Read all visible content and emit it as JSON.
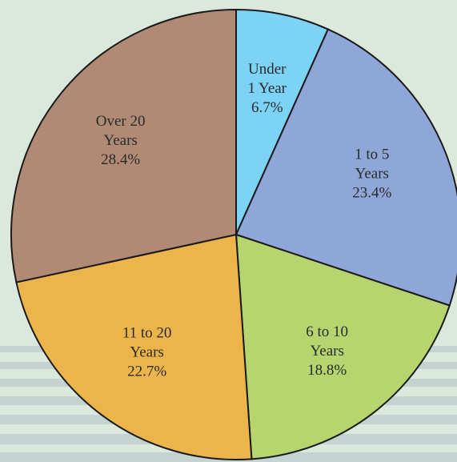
{
  "chart_data": {
    "type": "pie",
    "categories": [
      [
        "Under",
        "1 Year"
      ],
      [
        "1 to 5",
        "Years"
      ],
      [
        "6 to 10",
        "Years"
      ],
      [
        "11 to 20",
        "Years"
      ],
      [
        "Over 20",
        "Years"
      ]
    ],
    "values": [
      6.7,
      23.4,
      18.8,
      22.7,
      28.4
    ],
    "value_labels": [
      "6.7%",
      "23.4%",
      "18.8%",
      "22.7%",
      "28.4%"
    ],
    "colors": [
      "#7dd3f5",
      "#8fa6d8",
      "#b6d56f",
      "#ecb54b",
      "#b08a75"
    ]
  }
}
